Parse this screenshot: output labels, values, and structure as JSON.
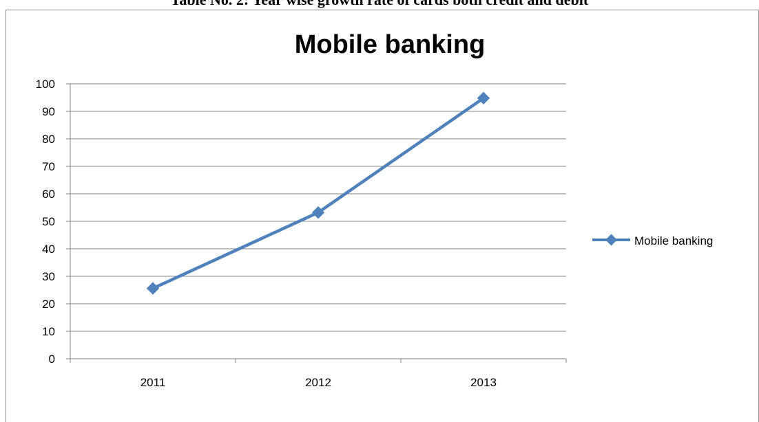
{
  "document": {
    "heading": "Table No. 2: Year wise growth rate of cards both credit and debit"
  },
  "chart_data": {
    "type": "line",
    "title": "Mobile banking",
    "xlabel": "",
    "ylabel": "",
    "categories": [
      "2011",
      "2012",
      "2013"
    ],
    "series": [
      {
        "name": "Mobile banking",
        "values": [
          25.6,
          53.2,
          94.8
        ],
        "color": "#4f81bd"
      }
    ],
    "ylim": [
      0,
      100
    ],
    "yticks": [
      0,
      10,
      20,
      30,
      40,
      50,
      60,
      70,
      80,
      90,
      100
    ],
    "grid": true,
    "legend": "right",
    "colors": {
      "gridline": "#868686",
      "axis": "#868686",
      "series": "#4f81bd"
    }
  }
}
